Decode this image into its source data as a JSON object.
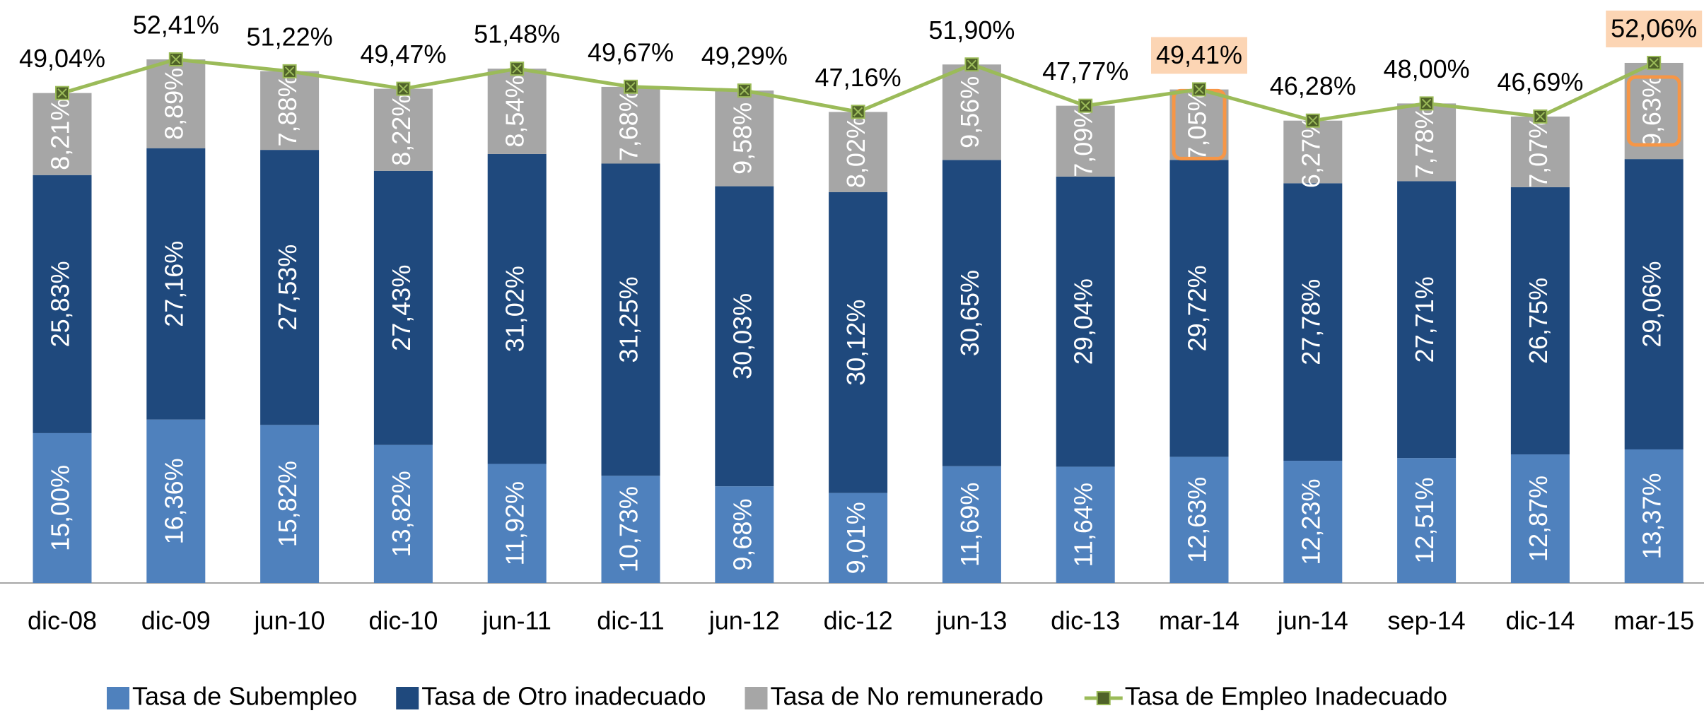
{
  "chart_data": {
    "type": "bar",
    "stacked": true,
    "categories": [
      "dic-08",
      "dic-09",
      "jun-10",
      "dic-10",
      "jun-11",
      "dic-11",
      "jun-12",
      "dic-12",
      "jun-13",
      "dic-13",
      "mar-14",
      "jun-14",
      "sep-14",
      "dic-14",
      "mar-15"
    ],
    "ylim": [
      0,
      58
    ],
    "series": [
      {
        "name": "Tasa de Subempleo",
        "color": "#4f81bd",
        "values": [
          15.0,
          16.36,
          15.82,
          13.82,
          11.92,
          10.73,
          9.68,
          9.01,
          11.69,
          11.64,
          12.63,
          12.23,
          12.51,
          12.87,
          13.37
        ],
        "value_labels": [
          "15,00%",
          "16,36%",
          "15,82%",
          "13,82%",
          "11,92%",
          "10,73%",
          "9,68%",
          "9,01%",
          "11,69%",
          "11,64%",
          "12,63%",
          "12,23%",
          "12,51%",
          "12,87%",
          "13,37%"
        ]
      },
      {
        "name": "Tasa de Otro inadecuado",
        "color": "#1f497d",
        "values": [
          25.83,
          27.16,
          27.53,
          27.43,
          31.02,
          31.25,
          30.03,
          30.12,
          30.65,
          29.04,
          29.72,
          27.78,
          27.71,
          26.75,
          29.06
        ],
        "value_labels": [
          "25,83%",
          "27,16%",
          "27,53%",
          "27,43%",
          "31,02%",
          "31,25%",
          "30,03%",
          "30,12%",
          "30,65%",
          "29,04%",
          "29,72%",
          "27,78%",
          "27,71%",
          "26,75%",
          "29,06%"
        ]
      },
      {
        "name": "Tasa de No remunerado",
        "color": "#a6a6a6",
        "values": [
          8.21,
          8.89,
          7.88,
          8.22,
          8.54,
          7.68,
          9.58,
          8.02,
          9.56,
          7.09,
          7.05,
          6.27,
          7.78,
          7.07,
          9.63
        ],
        "value_labels": [
          "8,21%",
          "8,89%",
          "7,88%",
          "8,22%",
          "8,54%",
          "7,68%",
          "9,58%",
          "8,02%",
          "9,56%",
          "7,09%",
          "7,05%",
          "6,27%",
          "7,78%",
          "7,07%",
          "9,63%"
        ]
      },
      {
        "name": "Tasa de Empleo Inadecuado",
        "type": "line",
        "color": "#9bbb59",
        "values": [
          49.04,
          52.41,
          51.22,
          49.47,
          51.48,
          49.67,
          49.29,
          47.16,
          51.9,
          47.77,
          49.41,
          46.28,
          48.0,
          46.69,
          52.06
        ],
        "value_labels": [
          "49,04%",
          "52,41%",
          "51,22%",
          "49,47%",
          "51,48%",
          "49,67%",
          "49,29%",
          "47,16%",
          "51,90%",
          "47,77%",
          "49,41%",
          "46,28%",
          "48,00%",
          "46,69%",
          "52,06%"
        ]
      }
    ]
  }
}
